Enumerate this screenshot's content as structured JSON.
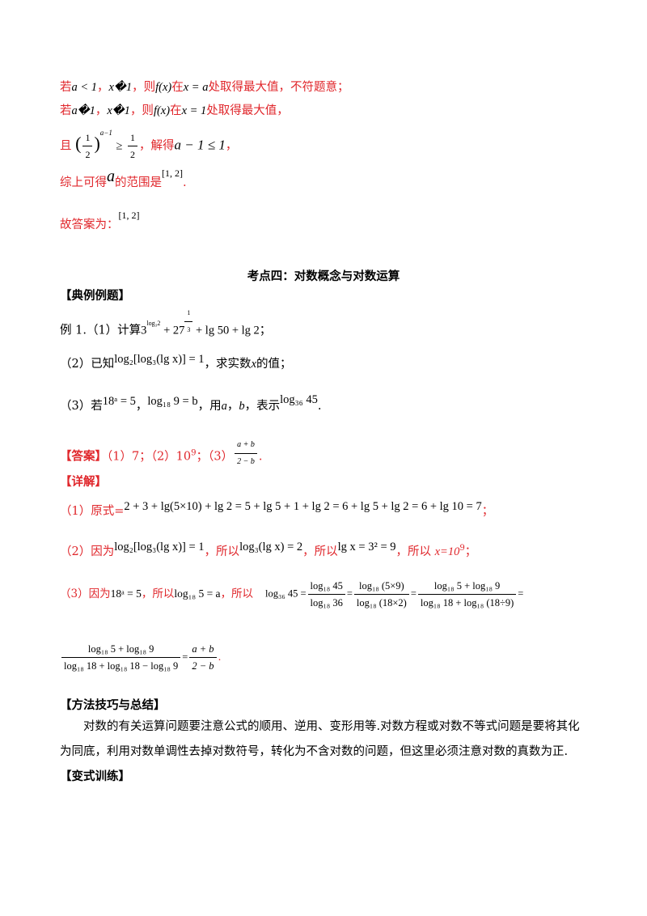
{
  "top_section": {
    "line1": {
      "p1": "若",
      "m1": "a < 1",
      "p2": "，",
      "m2": "x�1",
      "p3": "，则",
      "m3": "f(x)",
      "p4": "在",
      "m4": "x = a",
      "p5": "处取得最大值，不符题意；"
    },
    "line2": {
      "p1": "若",
      "m1": "a�1",
      "p2": "，",
      "m2": "x�1",
      "p3": "，则",
      "m3": "f(x)",
      "p4": "在",
      "m4": "x = 1",
      "p5": "处取得最大值，"
    },
    "line3": {
      "p1": "且",
      "base_num": "1",
      "base_den": "2",
      "exp": "a−1",
      "ge": "≥",
      "rhs_num": "1",
      "rhs_den": "2",
      "p2": "，解得",
      "m1": "a − 1 ≤ 1",
      "p3": "，"
    },
    "line4": {
      "p1": "综上可得",
      "m1": "a",
      "p2": "的范围是",
      "m2": "[1, 2]",
      "p3": "."
    },
    "line5": {
      "p1": "故答案为：",
      "m1": "[1, 2]"
    }
  },
  "section_title": "考点四：对数概念与对数运算",
  "example_heading": "【典例例题】",
  "example": {
    "q1": {
      "label": "例 1.（1）计算",
      "b1": "3",
      "e1": "log₃2",
      "p1": " + 27",
      "e2_num": "1",
      "e2_den": "3",
      "p2": " + lg 50 + lg 2",
      "end": "；"
    },
    "q2": {
      "label": "（2）已知",
      "expr": "log₂[log₃(lg x)] = 1",
      "p1": "，求实数",
      "m1": "x",
      "p2": "的值；"
    },
    "q3": {
      "label": "（3）若",
      "m1": "18ᵃ = 5",
      "p1": "，",
      "m2": "log₁₈ 9 = b",
      "p2": "，用",
      "m3": "a",
      "p3": "，",
      "m4": "b",
      "p4": "，表示",
      "m5": "log₃₆ 45",
      "p5": "."
    }
  },
  "answer": {
    "label": "【答案】",
    "a1": "（1）7；",
    "a2_pre": "（2）10",
    "a2_exp": "9",
    "a2_post": "；",
    "a3": "（3）",
    "frac_num": "a + b",
    "frac_den": "2 − b",
    "end": "."
  },
  "explain_label": "【详解】",
  "explain": {
    "s1": {
      "label": "（1）原式=",
      "expr": "2 + 3 + lg(5×10) + lg 2 = 5 + lg 5 + 1 + lg 2 = 6 + lg 5 + lg 2 = 6 + lg 10 = 7",
      "end": "；"
    },
    "s2": {
      "label": "（2）因为",
      "m1": "log₂[log₃(lg x)] = 1",
      "p1": "，所以",
      "m2": "log₃(lg x) = 2",
      "p2": "，所以",
      "m3": "lg x = 3² = 9",
      "p3": "，所以 ",
      "p4": "x=10",
      "p4_exp": "9",
      "end": "；"
    },
    "s3": {
      "label": "（3）因为",
      "m1": "18ᵃ = 5",
      "p1": "，所以",
      "m2": "log₁₈ 5 = a",
      "p2": "，所以",
      "lhs": "log₃₆ 45 =",
      "f1_num": "log₁₈ 45",
      "f1_den": "log₁₈ 36",
      "eq": "=",
      "f2_num": "log₁₈ (5×9)",
      "f2_den": "log₁₈ (18×2)",
      "f3_num": "log₁₈ 5 + log₁₈ 9",
      "f3_den": "log₁₈ 18 + log₁₈ (18÷9)",
      "tail": "="
    },
    "s4": {
      "f1_num": "log₁₈ 5 + log₁₈ 9",
      "f1_den": "log₁₈ 18 + log₁₈ 18 − log₁₈ 9",
      "eq": "=",
      "f2_num": "a + b",
      "f2_den": "2 − b",
      "end": "."
    }
  },
  "method_heading": "【方法技巧与总结】",
  "method_text": "对数的有关运算问题要注意公式的顺用、逆用、变形用等.对数方程或对数不等式问题是要将其化为同底，利用对数单调性去掉对数符号，转化为不含对数的问题，但这里必须注意对数的真数为正.",
  "practice_heading": "【变式训练】"
}
